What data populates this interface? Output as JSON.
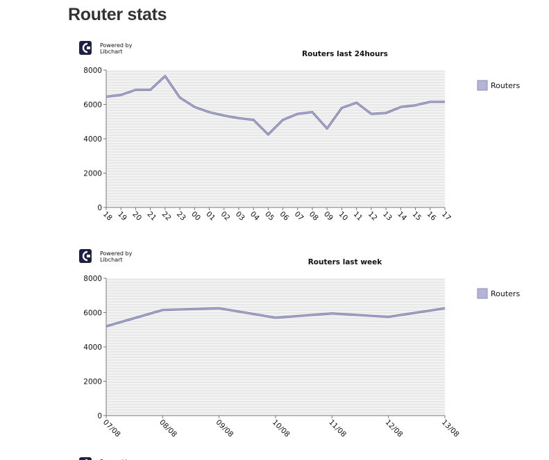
{
  "page": {
    "title": "Router stats"
  },
  "powered_by": {
    "line1": "Powered by",
    "line2": "Libchart"
  },
  "colors": {
    "series_line": "#7b7ba6",
    "series_light": "#b4b4d6",
    "grid": "#dedede",
    "plot_bg": "#f3f3f3",
    "axis": "#777777",
    "logo": "#1d2240"
  },
  "chart_data": [
    {
      "type": "line",
      "title": "Routers last 24hours",
      "categories": [
        "18",
        "19",
        "20",
        "21",
        "22",
        "23",
        "00",
        "01",
        "02",
        "03",
        "04",
        "05",
        "06",
        "07",
        "08",
        "09",
        "10",
        "11",
        "12",
        "13",
        "14",
        "15",
        "16",
        "17"
      ],
      "series": [
        {
          "name": "Routers",
          "values": [
            6450,
            6550,
            6850,
            6850,
            7650,
            6400,
            5850,
            5550,
            5350,
            5200,
            5100,
            4250,
            5100,
            5450,
            5550,
            4600,
            5800,
            6100,
            5450,
            5500,
            5850,
            5950,
            6150,
            6150
          ]
        }
      ],
      "ylim": [
        0,
        8000
      ],
      "yticks": [
        0,
        2000,
        4000,
        6000,
        8000
      ],
      "grid": true,
      "legend": "right"
    },
    {
      "type": "line",
      "title": "Routers last week",
      "categories": [
        "07/08",
        "08/08",
        "09/08",
        "10/08",
        "11/08",
        "12/08",
        "13/08"
      ],
      "series": [
        {
          "name": "Routers",
          "values": [
            5200,
            6150,
            6250,
            5700,
            5950,
            5750,
            6250
          ]
        }
      ],
      "ylim": [
        0,
        8000
      ],
      "yticks": [
        0,
        2000,
        4000,
        6000,
        8000
      ],
      "grid": true,
      "legend": "right"
    }
  ]
}
